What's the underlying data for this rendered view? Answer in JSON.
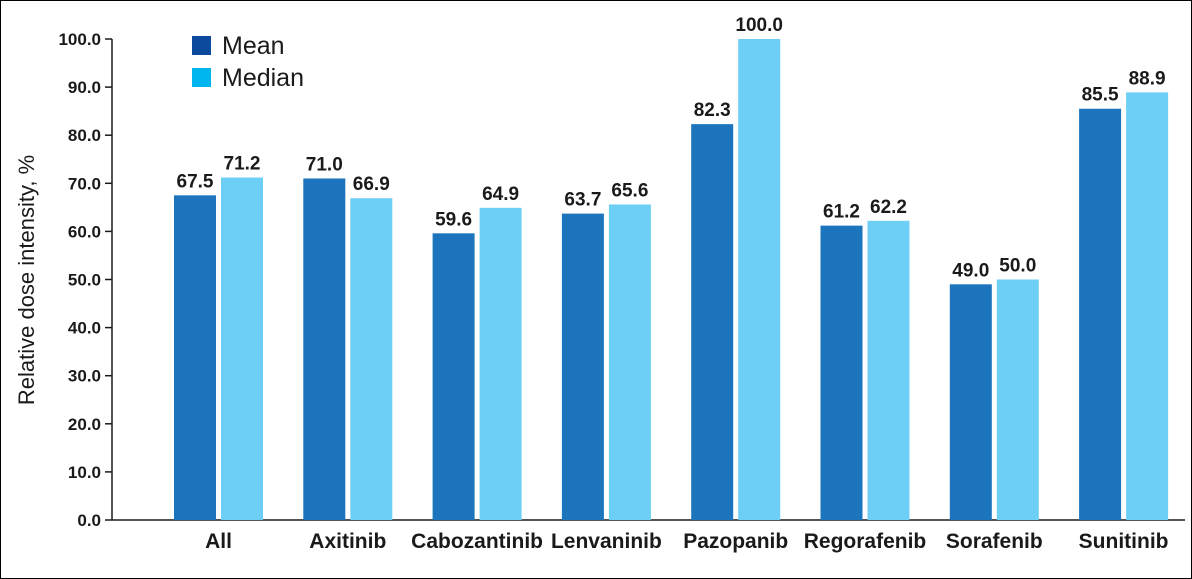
{
  "chart_data": {
    "type": "bar",
    "title": "",
    "xlabel": "",
    "ylabel": "Relative dose intensity, %",
    "ylim": [
      0,
      100
    ],
    "ytick_step": 10,
    "ytick_decimals": 1,
    "grid": false,
    "legend_position": "top-left",
    "categories": [
      "All",
      "Axitinib",
      "Cabozantinib",
      "Lenvaninib",
      "Pazopanib",
      "Regorafenib",
      "Sorafenib",
      "Sunitinib"
    ],
    "series": [
      {
        "name": "Mean",
        "color": "#1c75bc",
        "legend_color": "#0b4a9c",
        "values": [
          67.5,
          71.0,
          59.6,
          63.7,
          82.3,
          61.2,
          49.0,
          85.5
        ]
      },
      {
        "name": "Median",
        "color": "#6dcff6",
        "legend_color": "#00b6ef",
        "values": [
          71.2,
          66.9,
          64.9,
          65.6,
          100.0,
          62.2,
          50.0,
          88.9
        ]
      }
    ]
  }
}
